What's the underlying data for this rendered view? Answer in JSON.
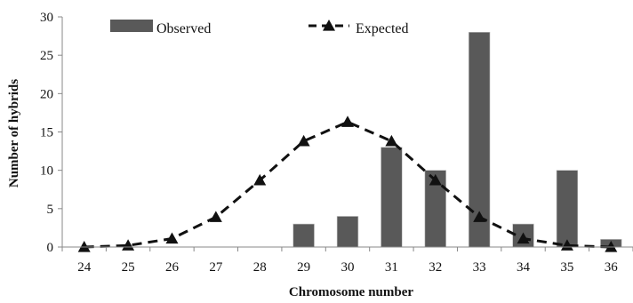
{
  "chart_data": {
    "type": "bar",
    "xlabel": "Chromosome number",
    "ylabel": "Number of hybrids",
    "ylim": [
      0,
      30
    ],
    "yticks": [
      0,
      5,
      10,
      15,
      20,
      25,
      30
    ],
    "categories": [
      "24",
      "25",
      "26",
      "27",
      "28",
      "29",
      "30",
      "31",
      "32",
      "33",
      "34",
      "35",
      "36"
    ],
    "legend_position": "top",
    "grid": false,
    "series": [
      {
        "name": "Observed",
        "kind": "bar",
        "color": "#595959",
        "values": [
          0,
          0,
          0,
          0,
          0,
          3,
          4,
          13,
          10,
          28,
          3,
          10,
          1
        ]
      },
      {
        "name": "Expected",
        "kind": "line",
        "line_style": "dashed",
        "marker": "triangle",
        "color": "#111111",
        "values": [
          0,
          0.2,
          1.1,
          3.9,
          8.7,
          13.8,
          16.3,
          13.8,
          8.7,
          3.9,
          1.1,
          0.2,
          0
        ]
      }
    ]
  }
}
